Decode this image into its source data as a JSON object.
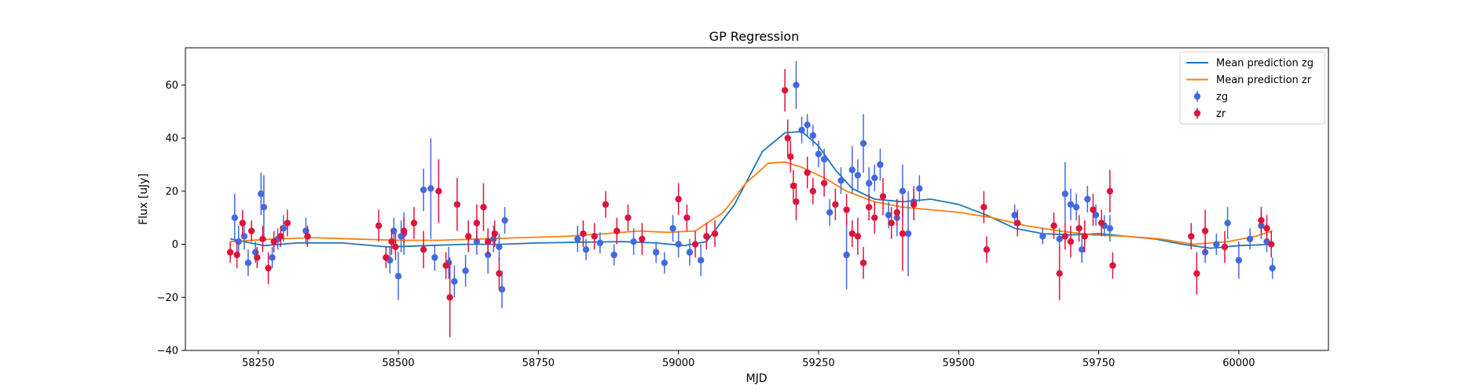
{
  "chart_data": {
    "type": "scatter",
    "title": "GP Regression",
    "xlabel": "MJD",
    "ylabel": "Flux [uJy]",
    "xlim": [
      58120,
      60160
    ],
    "ylim": [
      -40,
      74
    ],
    "xticks": [
      58250,
      58500,
      58750,
      59000,
      59250,
      59500,
      59750,
      60000
    ],
    "yticks": [
      -40,
      -20,
      0,
      20,
      40,
      60
    ],
    "grid": false,
    "legend_position": "top-right",
    "legend": [
      {
        "label": "Mean prediction zg",
        "kind": "line",
        "color": "#1f77b4"
      },
      {
        "label": "Mean prediction zr",
        "kind": "line",
        "color": "#ff7f0e"
      },
      {
        "label": "zg",
        "kind": "errorbar",
        "color": "#4169e1"
      },
      {
        "label": "zr",
        "kind": "errorbar",
        "color": "#dc143c"
      }
    ],
    "series": [
      {
        "name": "Mean prediction zg",
        "kind": "line",
        "color": "#1f77b4",
        "x": [
          58200,
          58260,
          58320,
          58400,
          58480,
          58550,
          58620,
          58680,
          58750,
          58830,
          58900,
          58960,
          59010,
          59050,
          59100,
          59150,
          59190,
          59220,
          59250,
          59280,
          59310,
          59350,
          59400,
          59450,
          59500,
          59550,
          59600,
          59650,
          59700,
          59750,
          59800,
          59850,
          59900,
          59950,
          60000,
          60060
        ],
        "values": [
          2,
          -0.5,
          0.5,
          0.5,
          -1,
          -0.5,
          0,
          0,
          0.5,
          0.8,
          1,
          0.5,
          -0.5,
          1,
          15,
          35,
          42,
          42.5,
          37,
          28,
          21,
          17,
          16,
          17,
          15,
          11,
          6,
          4,
          3.5,
          4,
          3,
          2,
          0,
          -1.5,
          -0.5,
          0
        ]
      },
      {
        "name": "Mean prediction zr",
        "kind": "line",
        "color": "#ff7f0e",
        "x": [
          58200,
          58280,
          58350,
          58420,
          58500,
          58570,
          58650,
          58720,
          58800,
          58870,
          58930,
          58980,
          59030,
          59080,
          59120,
          59160,
          59190,
          59220,
          59260,
          59300,
          59350,
          59400,
          59450,
          59500,
          59560,
          59620,
          59680,
          59740,
          59800,
          59860,
          59920,
          59980,
          60030,
          60060
        ],
        "values": [
          1,
          2,
          2.5,
          2,
          1.5,
          1.5,
          2,
          2.5,
          3,
          4,
          5,
          4.5,
          5,
          12,
          23,
          30.5,
          31,
          29,
          25,
          20,
          16,
          14,
          13,
          12,
          10,
          7,
          5,
          3.5,
          3,
          2,
          0,
          1,
          3,
          5
        ]
      },
      {
        "name": "zg",
        "kind": "errorbar",
        "color": "#4169e1",
        "x": [
          58208,
          58215,
          58225,
          58232,
          58245,
          58255,
          58260,
          58275,
          58285,
          58295,
          58335,
          58485,
          58492,
          58500,
          58505,
          58510,
          58545,
          58558,
          58565,
          58590,
          58600,
          58620,
          58640,
          58660,
          58670,
          58680,
          58685,
          58690,
          58820,
          58835,
          58860,
          58885,
          58920,
          58960,
          58975,
          58990,
          59000,
          59020,
          59040,
          59210,
          59220,
          59230,
          59240,
          59250,
          59260,
          59270,
          59290,
          59300,
          59310,
          59320,
          59330,
          59340,
          59350,
          59360,
          59375,
          59390,
          59400,
          59410,
          59420,
          59430,
          59600,
          59650,
          59680,
          59690,
          59700,
          59710,
          59720,
          59730,
          59745,
          59760,
          59770,
          59940,
          59960,
          59980,
          60000,
          60020,
          60040,
          60050,
          60060
        ],
        "values": [
          10,
          1,
          3,
          -7,
          -3,
          19,
          14,
          -5,
          2,
          6,
          5,
          -6,
          5,
          -12,
          3,
          4,
          20.5,
          21,
          -5,
          -7,
          -14,
          -10,
          1,
          -4,
          2,
          -1,
          -17,
          9,
          2,
          -2,
          0.5,
          -4,
          1,
          -3,
          -7,
          6,
          0,
          -3,
          -6,
          60,
          43,
          45,
          41,
          34,
          32,
          12,
          24,
          -4,
          28,
          26,
          38,
          23,
          25,
          30,
          11,
          10,
          20,
          4,
          16,
          21,
          11,
          3,
          2,
          19,
          15,
          14,
          -2,
          17,
          11,
          7,
          6,
          -3,
          0,
          8,
          -6,
          2,
          7,
          1,
          -9
        ],
        "errors": [
          9,
          6,
          5,
          5,
          4,
          8,
          12,
          4,
          4,
          5,
          5,
          5,
          5,
          9,
          6,
          8,
          8,
          19,
          5,
          6,
          6,
          6,
          5,
          7,
          5,
          5,
          7,
          5,
          5,
          4,
          4,
          4,
          5,
          4,
          4,
          5,
          5,
          5,
          6,
          9,
          5,
          4,
          4,
          5,
          4,
          5,
          5,
          13,
          9,
          6,
          11,
          6,
          5,
          6,
          5,
          7,
          10,
          16,
          6,
          5,
          4,
          3,
          4,
          12,
          6,
          5,
          5,
          5,
          4,
          4,
          5,
          4,
          4,
          6,
          7,
          4,
          5,
          4,
          4
        ]
      },
      {
        "name": "zr",
        "kind": "errorbar",
        "color": "#dc143c",
        "x": [
          58200,
          58212,
          58222,
          58238,
          58248,
          58258,
          58268,
          58278,
          58290,
          58302,
          58338,
          58465,
          58478,
          58488,
          58495,
          58510,
          58528,
          58545,
          58572,
          58585,
          58592,
          58605,
          58625,
          58640,
          58652,
          58660,
          58672,
          58680,
          58830,
          58850,
          58870,
          58890,
          58910,
          58935,
          59000,
          59015,
          59030,
          59050,
          59065,
          59190,
          59195,
          59200,
          59205,
          59210,
          59230,
          59240,
          59260,
          59280,
          59300,
          59310,
          59320,
          59330,
          59340,
          59350,
          59365,
          59380,
          59390,
          59400,
          59420,
          59545,
          59550,
          59605,
          59670,
          59680,
          59690,
          59700,
          59715,
          59725,
          59740,
          59755,
          59770,
          59775,
          59915,
          59925,
          59940,
          59975,
          60040,
          60050,
          60058
        ],
        "values": [
          -3,
          -4,
          8,
          5,
          -5,
          2,
          -9,
          1,
          3,
          8,
          3,
          7,
          -5,
          1,
          -1,
          5,
          8,
          -2,
          20,
          -8,
          -20,
          15,
          3,
          8,
          14,
          1,
          4,
          -11,
          4,
          3,
          15,
          5,
          10,
          2,
          17,
          10,
          0,
          3,
          4,
          58,
          40,
          33,
          22,
          16,
          27,
          20,
          23,
          15,
          13,
          4,
          3,
          -7,
          14,
          10,
          18,
          8,
          12,
          4,
          15,
          14,
          -2,
          8,
          7,
          -11,
          3,
          1,
          6,
          3,
          13,
          8,
          20,
          -8,
          3,
          -11,
          5,
          -1,
          9,
          6,
          0
        ],
        "errors": [
          4,
          5,
          5,
          4,
          4,
          5,
          6,
          4,
          4,
          5,
          4,
          6,
          4,
          5,
          5,
          5,
          6,
          7,
          12,
          5,
          15,
          10,
          6,
          7,
          9,
          5,
          5,
          6,
          5,
          5,
          5,
          5,
          5,
          6,
          6,
          5,
          5,
          5,
          5,
          8,
          7,
          6,
          6,
          7,
          6,
          5,
          5,
          6,
          6,
          5,
          7,
          6,
          5,
          6,
          7,
          6,
          5,
          14,
          6,
          6,
          5,
          5,
          5,
          10,
          5,
          6,
          5,
          6,
          6,
          5,
          8,
          5,
          5,
          8,
          8,
          6,
          5,
          5,
          5
        ]
      }
    ]
  }
}
